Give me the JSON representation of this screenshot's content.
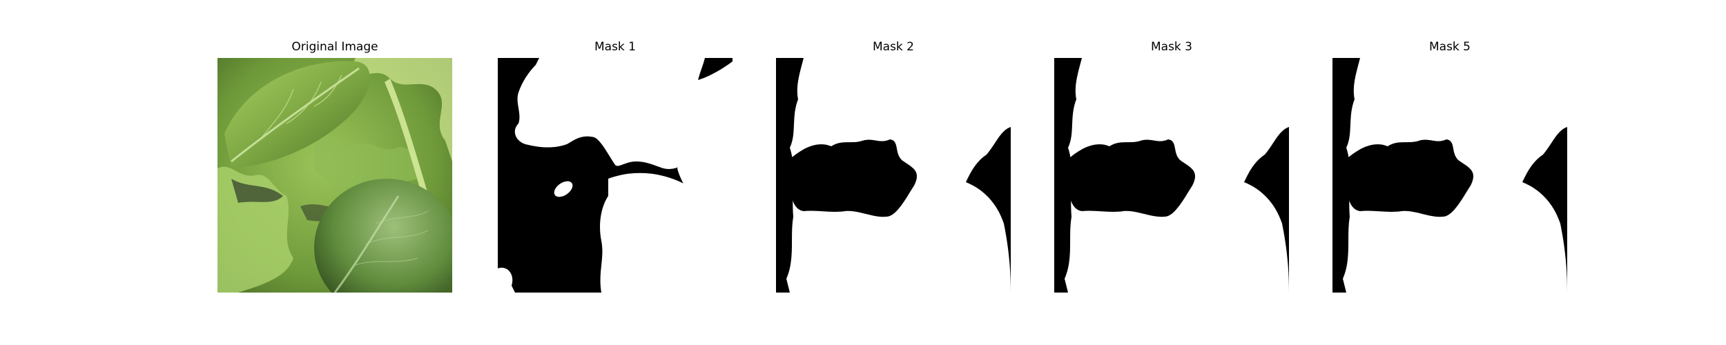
{
  "figure": {
    "panels": [
      {
        "title": "Original Image",
        "kind": "photo",
        "subject": "green leafy vegetables close-up"
      },
      {
        "title": "Mask 1",
        "kind": "mask"
      },
      {
        "title": "Mask 2",
        "kind": "mask"
      },
      {
        "title": "Mask 3",
        "kind": "mask"
      },
      {
        "title": "Mask 5",
        "kind": "mask"
      }
    ]
  },
  "colors": {
    "background": "#ffffff",
    "mask_foreground": "#ffffff",
    "mask_background": "#000000",
    "leaf_light": "#b7d77a",
    "leaf_mid": "#6f9a3a",
    "leaf_dark": "#2f4a1c"
  }
}
